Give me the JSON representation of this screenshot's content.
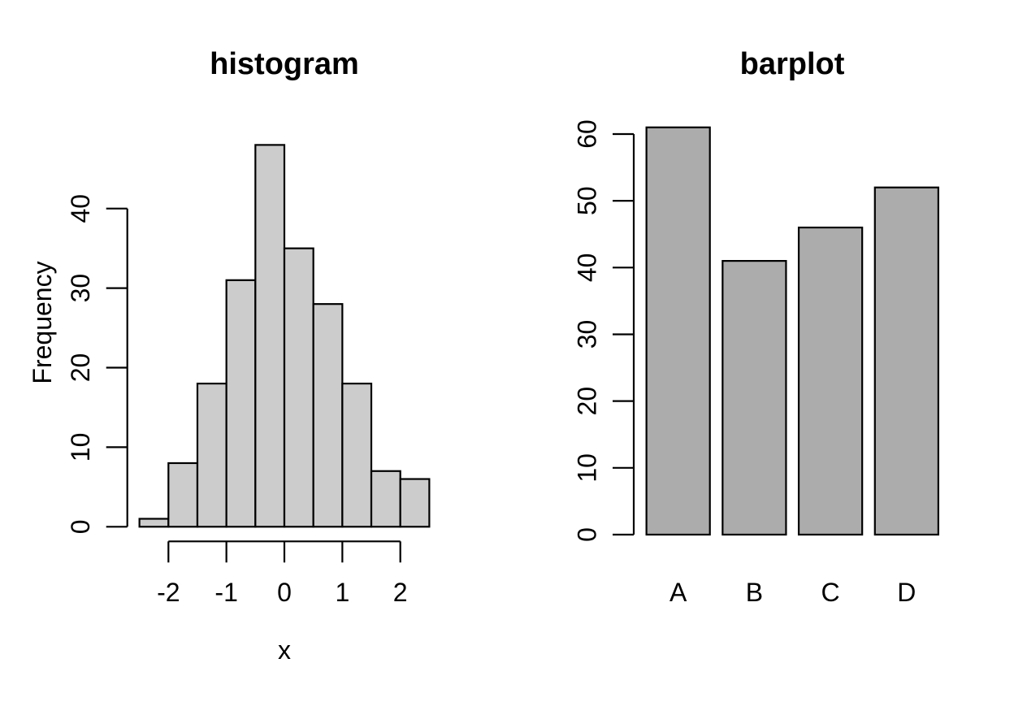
{
  "figure": {
    "background": "#FFFFFF",
    "text_color": "#000000"
  },
  "chart_data": [
    {
      "type": "histogram",
      "title": "histogram",
      "xlabel": "x",
      "ylabel": "Frequency",
      "bin_edges": [
        -2.5,
        -2,
        -1.5,
        -1,
        -0.5,
        0,
        0.5,
        1,
        1.5,
        2,
        2.5
      ],
      "counts": [
        1,
        8,
        18,
        31,
        48,
        35,
        28,
        18,
        7,
        6
      ],
      "x_ticks": [
        -2,
        -1,
        0,
        1,
        2
      ],
      "y_ticks": [
        0,
        10,
        20,
        30,
        40
      ],
      "xlim": [
        -2.5,
        2.5
      ],
      "ylim": [
        0,
        48
      ],
      "grid": false,
      "legend": "none",
      "bar_fill": "#CCCCCC",
      "bar_stroke": "#000000"
    },
    {
      "type": "bar",
      "title": "barplot",
      "categories": [
        "A",
        "B",
        "C",
        "D"
      ],
      "values": [
        61,
        41,
        46,
        52
      ],
      "y_ticks": [
        0,
        10,
        20,
        30,
        40,
        50,
        60
      ],
      "ylim": [
        0,
        61
      ],
      "grid": false,
      "legend": "none",
      "bar_fill": "#ACACAC",
      "bar_stroke": "#000000"
    }
  ]
}
